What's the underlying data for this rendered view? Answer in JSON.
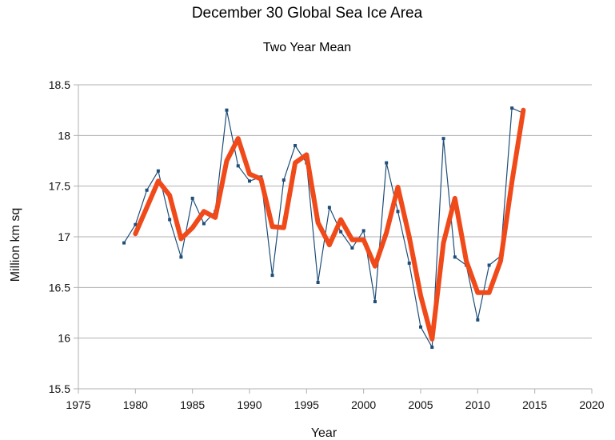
{
  "chart_data": {
    "type": "line",
    "title": "December 30 Global Sea Ice Area",
    "subtitle": "Two Year Mean",
    "xlabel": "Year",
    "ylabel": "Million km sq",
    "xlim": [
      1975,
      2020
    ],
    "ylim": [
      15.5,
      18.5
    ],
    "xticks": [
      1975,
      1980,
      1985,
      1990,
      1995,
      2000,
      2005,
      2010,
      2015,
      2020
    ],
    "yticks": [
      15.5,
      16,
      16.5,
      17,
      17.5,
      18,
      18.5
    ],
    "grid": "horizontal",
    "series": [
      {
        "color": "#1f4e79",
        "style": "thin line with markers",
        "x": [
          1979,
          1980,
          1981,
          1982,
          1983,
          1984,
          1985,
          1986,
          1987,
          1988,
          1989,
          1990,
          1991,
          1992,
          1993,
          1994,
          1995,
          1996,
          1997,
          1998,
          1999,
          2000,
          2001,
          2002,
          2003,
          2004,
          2005,
          2006,
          2007,
          2008,
          2009,
          2010,
          2011,
          2012,
          2013,
          2014
        ],
        "y": [
          16.94,
          17.12,
          17.46,
          17.65,
          17.17,
          16.8,
          17.38,
          17.13,
          17.25,
          18.25,
          17.7,
          17.55,
          17.59,
          16.62,
          17.56,
          17.9,
          17.73,
          16.55,
          17.29,
          17.05,
          16.89,
          17.06,
          16.36,
          17.73,
          17.25,
          16.74,
          16.11,
          15.91,
          17.97,
          16.8,
          16.72,
          16.18,
          16.72,
          16.81,
          18.27,
          18.22
        ]
      },
      {
        "color": "#f04a1a",
        "style": "thick line",
        "x": [
          1980,
          1981,
          1982,
          1983,
          1984,
          1985,
          1986,
          1987,
          1988,
          1989,
          1990,
          1991,
          1992,
          1993,
          1994,
          1995,
          1996,
          1997,
          1998,
          1999,
          2000,
          2001,
          2002,
          2003,
          2004,
          2005,
          2006,
          2007,
          2008,
          2009,
          2010,
          2011,
          2012,
          2013,
          2014
        ],
        "y": [
          17.03,
          17.29,
          17.55,
          17.41,
          16.98,
          17.09,
          17.25,
          17.19,
          17.75,
          17.97,
          17.62,
          17.57,
          17.1,
          17.09,
          17.73,
          17.81,
          17.14,
          16.92,
          17.17,
          16.97,
          16.97,
          16.71,
          17.04,
          17.49,
          17.0,
          16.42,
          15.99,
          16.94,
          17.38,
          16.76,
          16.45,
          16.45,
          16.76,
          17.54,
          18.25
        ]
      }
    ]
  }
}
